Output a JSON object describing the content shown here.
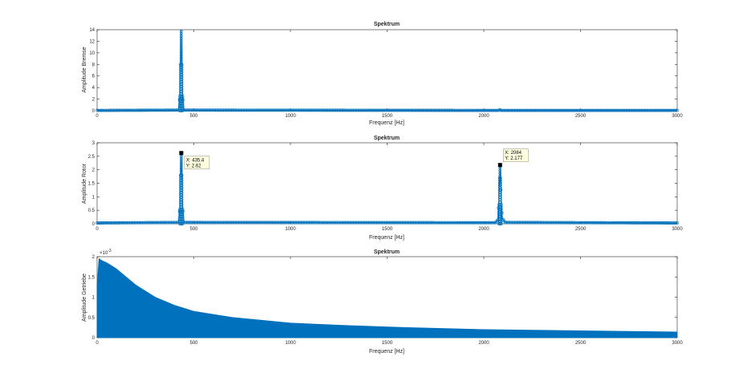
{
  "colors": {
    "series": "#0072bd",
    "axis": "#262626",
    "tip_bg": "#ffffe1",
    "tip_border": "#8c8c73"
  },
  "chart_data": [
    {
      "type": "line",
      "title": "Spektrum",
      "xlabel": "Frequenz [Hz]",
      "ylabel": "Amplitude Bremse",
      "xlim": [
        0,
        3000
      ],
      "ylim": [
        0,
        14
      ],
      "xticks": [
        0,
        500,
        1000,
        1500,
        2000,
        2500,
        3000
      ],
      "yticks": [
        0,
        2,
        4,
        6,
        8,
        10,
        12,
        14
      ],
      "marker": "circle",
      "peaks": [
        {
          "x": 435,
          "y": 14
        }
      ],
      "series": [
        {
          "values_desc": "peak",
          "x": [
            0,
            420,
            428,
            432,
            435,
            438,
            442,
            450,
            2080,
            2084,
            2088,
            3000
          ],
          "y": [
            0.05,
            0.1,
            2.5,
            8,
            14,
            8,
            2.5,
            0.1,
            0.05,
            0.3,
            0.05,
            0.05
          ]
        }
      ]
    },
    {
      "type": "line",
      "title": "Spektrum",
      "xlabel": "Frequenz [Hz]",
      "ylabel": "Amplitude Rotor",
      "xlim": [
        0,
        3000
      ],
      "ylim": [
        0,
        3
      ],
      "xticks": [
        0,
        500,
        1000,
        1500,
        2000,
        2500,
        3000
      ],
      "yticks": [
        0,
        0.5,
        1,
        1.5,
        2,
        2.5,
        3
      ],
      "ytick_labels": [
        "0",
        "0.5",
        "1",
        "1.5",
        "2",
        "2.5",
        "3"
      ],
      "marker": "circle",
      "series": [
        {
          "x": [
            0,
            420,
            428,
            432,
            435.4,
            438,
            442,
            450,
            2060,
            2072,
            2078,
            2082,
            2084,
            2086,
            2090,
            2096,
            2110,
            3000
          ],
          "y": [
            0.03,
            0.05,
            0.6,
            1.8,
            2.62,
            1.8,
            0.6,
            0.05,
            0.04,
            0.15,
            0.8,
            1.7,
            2.177,
            1.7,
            0.8,
            0.2,
            0.05,
            0.03
          ]
        }
      ],
      "datatips": [
        {
          "x": 435.4,
          "y": 2.62,
          "label_x": "X: 435.4",
          "label_y": "Y: 2.62",
          "box": "below-right"
        },
        {
          "x": 2084,
          "y": 2.177,
          "label_x": "X: 2084",
          "label_y": "Y: 2.177",
          "box": "above-right"
        }
      ]
    },
    {
      "type": "area",
      "title": "Spektrum",
      "xlabel": "Frequenz [Hz]",
      "ylabel": "Amplitude Getriebe",
      "xlim": [
        0,
        3000
      ],
      "ylim": [
        0,
        2
      ],
      "xticks": [
        0,
        500,
        1000,
        1500,
        2000,
        2500,
        3000
      ],
      "yticks": [
        0,
        0.5,
        1,
        1.5,
        2
      ],
      "ytick_labels": [
        "0",
        "0.5",
        "1",
        "1.5",
        "2"
      ],
      "exponent_label": "×10",
      "exponent_power": "-3",
      "series": [
        {
          "x": [
            0,
            10,
            25,
            50,
            100,
            150,
            200,
            300,
            400,
            500,
            700,
            1000,
            1300,
            1600,
            2000,
            2500,
            3000
          ],
          "y": [
            1.3,
            1.95,
            1.9,
            1.85,
            1.7,
            1.5,
            1.3,
            1.0,
            0.8,
            0.65,
            0.5,
            0.36,
            0.3,
            0.25,
            0.2,
            0.17,
            0.14
          ]
        }
      ]
    }
  ]
}
